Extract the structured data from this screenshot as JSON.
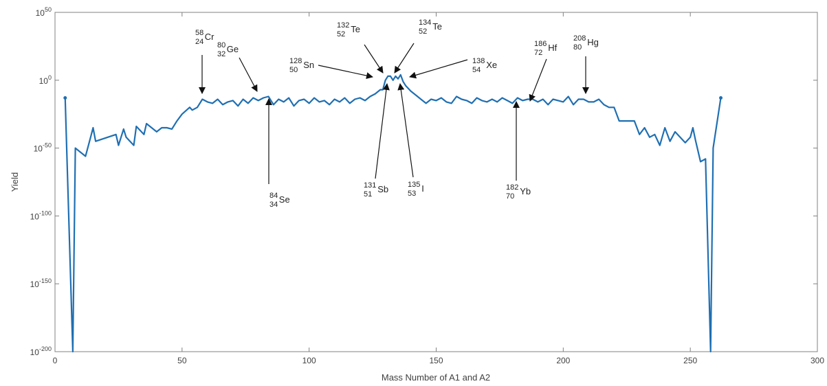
{
  "chart_data": {
    "type": "line",
    "title": "",
    "xlabel": "Mass Number of A1 and A2",
    "ylabel": "Yield",
    "xlim": [
      0,
      300
    ],
    "ylim_exponent": [
      -200,
      50
    ],
    "y_scale": "log",
    "grid": false,
    "legend": "none",
    "x_ticks": [
      "0",
      "50",
      "100",
      "150",
      "200",
      "250",
      "300"
    ],
    "y_ticks": [
      {
        "base": "10",
        "exp": "50"
      },
      {
        "base": "10",
        "exp": "0"
      },
      {
        "base": "10",
        "exp": "-50"
      },
      {
        "base": "10",
        "exp": "-100"
      },
      {
        "base": "10",
        "exp": "-150"
      },
      {
        "base": "10",
        "exp": "-200"
      }
    ],
    "series": [
      {
        "color": "#1f6fb2",
        "x": [
          4,
          7,
          8,
          12,
          14,
          15,
          16,
          24,
          25,
          27,
          28,
          31,
          32,
          35,
          36,
          40,
          42,
          44,
          46,
          48,
          50,
          53,
          54,
          56,
          58,
          60,
          62,
          64,
          66,
          68,
          70,
          72,
          74,
          76,
          78,
          80,
          82,
          84,
          86,
          88,
          90,
          92,
          94,
          96,
          98,
          100,
          102,
          104,
          106,
          108,
          110,
          112,
          114,
          116,
          118,
          120,
          122,
          124,
          126,
          128,
          129,
          130,
          131,
          132,
          133,
          134,
          135,
          136,
          137,
          138,
          140,
          142,
          144,
          146,
          148,
          150,
          152,
          154,
          156,
          158,
          160,
          162,
          164,
          166,
          168,
          170,
          172,
          174,
          176,
          178,
          180,
          182,
          184,
          186,
          188,
          190,
          192,
          194,
          196,
          198,
          200,
          202,
          204,
          206,
          208,
          210,
          212,
          214,
          216,
          218,
          220,
          222,
          224,
          228,
          230,
          232,
          234,
          236,
          238,
          240,
          242,
          244,
          248,
          250,
          251,
          252,
          254,
          256,
          258,
          259,
          262
        ],
        "y_exponent": [
          -13,
          -200,
          -50,
          -56,
          -42,
          -35,
          -45,
          -40,
          -48,
          -36,
          -42,
          -48,
          -34,
          -40,
          -32,
          -38,
          -35,
          -35,
          -36,
          -30,
          -25,
          -20,
          -22,
          -20,
          -14,
          -16,
          -17,
          -14,
          -18,
          -16,
          -15,
          -19,
          -14,
          -17,
          -13,
          -15,
          -13,
          -12,
          -18,
          -14,
          -16,
          -13,
          -19,
          -15,
          -14,
          -17,
          -13,
          -16,
          -15,
          -18,
          -14,
          -16,
          -13,
          -17,
          -14,
          -13,
          -15,
          -12,
          -10,
          -7,
          -7,
          0,
          3,
          3,
          0,
          3,
          1,
          4,
          -1,
          -4,
          -8,
          -11,
          -14,
          -17,
          -14,
          -15,
          -13,
          -16,
          -17,
          -12,
          -14,
          -15,
          -17,
          -13,
          -15,
          -16,
          -14,
          -16,
          -13,
          -15,
          -17,
          -13,
          -15,
          -14,
          -14,
          -16,
          -14,
          -18,
          -14,
          -15,
          -16,
          -12,
          -18,
          -14,
          -14,
          -16,
          -16,
          -14,
          -18,
          -20,
          -20,
          -30,
          -30,
          -30,
          -40,
          -35,
          -42,
          -40,
          -48,
          -35,
          -45,
          -38,
          -46,
          -42,
          -35,
          -44,
          -60,
          -58,
          -200,
          -50,
          -13
        ]
      }
    ],
    "annotations": [
      {
        "mass": "58",
        "atomic": "24",
        "symbol": "Cr"
      },
      {
        "mass": "80",
        "atomic": "32",
        "symbol": "Ge"
      },
      {
        "mass": "84",
        "atomic": "34",
        "symbol": "Se"
      },
      {
        "mass": "128",
        "atomic": "50",
        "symbol": "Sn"
      },
      {
        "mass": "132",
        "atomic": "52",
        "symbol": "Te"
      },
      {
        "mass": "134",
        "atomic": "52",
        "symbol": "Te"
      },
      {
        "mass": "138",
        "atomic": "54",
        "symbol": "Xe"
      },
      {
        "mass": "131",
        "atomic": "51",
        "symbol": "Sb"
      },
      {
        "mass": "135",
        "atomic": "53",
        "symbol": "I"
      },
      {
        "mass": "186",
        "atomic": "72",
        "symbol": "Hf"
      },
      {
        "mass": "208",
        "atomic": "80",
        "symbol": "Hg"
      },
      {
        "mass": "182",
        "atomic": "70",
        "symbol": "Yb"
      }
    ]
  }
}
